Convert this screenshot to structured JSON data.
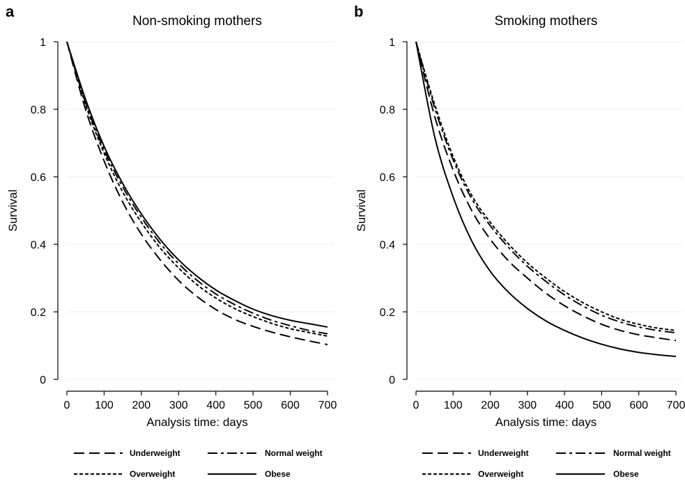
{
  "chart_data": [
    {
      "type": "line",
      "panel_letter": "a",
      "title": "Non-smoking mothers",
      "xlabel": "Analysis time: days",
      "ylabel": "Survival",
      "xlim": [
        0,
        700
      ],
      "ylim": [
        0,
        1
      ],
      "x_ticks": [
        0,
        100,
        200,
        300,
        400,
        500,
        600,
        700
      ],
      "y_ticks": [
        0,
        0.2,
        0.4,
        0.6,
        0.8,
        1
      ],
      "y_tick_labels": [
        "0",
        "0.2",
        "0.4",
        "0.6",
        "0.8",
        "1"
      ],
      "grid": "horizontal",
      "legend_position": "bottom",
      "x": [
        0,
        50,
        100,
        150,
        200,
        250,
        300,
        350,
        400,
        450,
        500,
        550,
        600,
        650,
        700
      ],
      "series": [
        {
          "name": "Underweight",
          "dash": "long-dash",
          "values": [
            1.0,
            0.8,
            0.647,
            0.525,
            0.43,
            0.355,
            0.293,
            0.245,
            0.207,
            0.178,
            0.157,
            0.14,
            0.126,
            0.114,
            0.103
          ]
        },
        {
          "name": "Normal weight",
          "dash": "dash-dot",
          "values": [
            1.0,
            0.82,
            0.68,
            0.57,
            0.48,
            0.404,
            0.343,
            0.293,
            0.253,
            0.222,
            0.196,
            0.175,
            0.159,
            0.145,
            0.135
          ]
        },
        {
          "name": "Overweight",
          "dash": "short-dash",
          "values": [
            1.0,
            0.815,
            0.67,
            0.555,
            0.465,
            0.39,
            0.33,
            0.28,
            0.241,
            0.21,
            0.186,
            0.166,
            0.15,
            0.139,
            0.128
          ]
        },
        {
          "name": "Obese",
          "dash": "solid",
          "values": [
            1.0,
            0.83,
            0.69,
            0.58,
            0.49,
            0.415,
            0.354,
            0.305,
            0.265,
            0.234,
            0.208,
            0.189,
            0.175,
            0.165,
            0.155
          ]
        }
      ]
    },
    {
      "type": "line",
      "panel_letter": "b",
      "title": "Smoking mothers",
      "xlabel": "Analysis time: days",
      "ylabel": "Survival",
      "xlim": [
        0,
        700
      ],
      "ylim": [
        0,
        1
      ],
      "x_ticks": [
        0,
        100,
        200,
        300,
        400,
        500,
        600,
        700
      ],
      "y_ticks": [
        0,
        0.2,
        0.4,
        0.6,
        0.8,
        1
      ],
      "y_tick_labels": [
        "0",
        "0.2",
        "0.4",
        "0.6",
        "0.8",
        "1"
      ],
      "grid": "horizontal",
      "legend_position": "bottom",
      "x": [
        0,
        50,
        100,
        150,
        200,
        250,
        300,
        350,
        400,
        450,
        500,
        550,
        600,
        650,
        700
      ],
      "series": [
        {
          "name": "Underweight",
          "dash": "long-dash",
          "values": [
            1.0,
            0.78,
            0.62,
            0.5,
            0.415,
            0.35,
            0.3,
            0.255,
            0.218,
            0.188,
            0.163,
            0.145,
            0.132,
            0.123,
            0.115
          ]
        },
        {
          "name": "Normal weight",
          "dash": "dash-dot",
          "values": [
            1.0,
            0.805,
            0.65,
            0.535,
            0.455,
            0.39,
            0.335,
            0.29,
            0.25,
            0.217,
            0.19,
            0.17,
            0.155,
            0.145,
            0.138
          ]
        },
        {
          "name": "Overweight",
          "dash": "short-dash",
          "values": [
            1.0,
            0.815,
            0.66,
            0.545,
            0.465,
            0.4,
            0.345,
            0.3,
            0.26,
            0.227,
            0.2,
            0.178,
            0.163,
            0.152,
            0.145
          ]
        },
        {
          "name": "Obese",
          "dash": "solid",
          "values": [
            1.0,
            0.72,
            0.54,
            0.41,
            0.32,
            0.257,
            0.21,
            0.173,
            0.145,
            0.122,
            0.104,
            0.09,
            0.08,
            0.073,
            0.068
          ]
        }
      ]
    }
  ]
}
